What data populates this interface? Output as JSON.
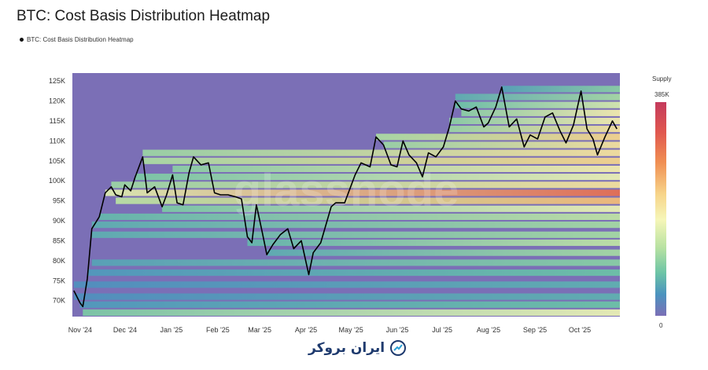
{
  "header": {
    "title": "BTC: Cost Basis Distribution Heatmap"
  },
  "legend": {
    "label": "BTC: Cost Basis Distribution Heatmap"
  },
  "colorbar": {
    "title": "Supply",
    "max_label": "385K",
    "min_label": "0"
  },
  "watermark": "glassnode",
  "brand": {
    "text": "ایران بروکر"
  },
  "colors": {
    "background": "#7b6fb6",
    "line": "#000000",
    "hot": "#c43a5c",
    "warm": "#f6f6b8",
    "cool": "#6cc4a6"
  },
  "chart_data": {
    "type": "heatmap",
    "title": "BTC: Cost Basis Distribution Heatmap",
    "x_labels": [
      "Nov '24",
      "Dec '24",
      "Jan '25",
      "Feb '25",
      "Mar '25",
      "Apr '25",
      "May '25",
      "Jun '25",
      "Jul '25",
      "Aug '25",
      "Sep '25",
      "Oct '25"
    ],
    "y_labels": [
      "70K",
      "75K",
      "80K",
      "85K",
      "90K",
      "95K",
      "100K",
      "105K",
      "110K",
      "115K",
      "120K",
      "125K"
    ],
    "ylim": [
      66000,
      127000
    ],
    "grid": false,
    "legend_position": "top-left",
    "series": [
      {
        "name": "BTC: Cost Basis Distribution Heatmap",
        "type": "line",
        "color": "#000000",
        "x": [
          "2024-11-01",
          "2024-11-05",
          "2024-11-07",
          "2024-11-10",
          "2024-11-13",
          "2024-11-18",
          "2024-11-22",
          "2024-11-26",
          "2024-11-29",
          "2024-12-03",
          "2024-12-05",
          "2024-12-09",
          "2024-12-12",
          "2024-12-17",
          "2024-12-20",
          "2024-12-25",
          "2024-12-30",
          "2025-01-02",
          "2025-01-06",
          "2025-01-09",
          "2025-01-13",
          "2025-01-17",
          "2025-01-20",
          "2025-01-25",
          "2025-01-30",
          "2025-02-03",
          "2025-02-07",
          "2025-02-12",
          "2025-02-17",
          "2025-02-21",
          "2025-02-25",
          "2025-02-28",
          "2025-03-03",
          "2025-03-07",
          "2025-03-10",
          "2025-03-14",
          "2025-03-19",
          "2025-03-24",
          "2025-03-28",
          "2025-04-02",
          "2025-04-07",
          "2025-04-10",
          "2025-04-15",
          "2025-04-22",
          "2025-04-25",
          "2025-05-01",
          "2025-05-08",
          "2025-05-12",
          "2025-05-18",
          "2025-05-22",
          "2025-05-27",
          "2025-06-01",
          "2025-06-05",
          "2025-06-09",
          "2025-06-13",
          "2025-06-18",
          "2025-06-22",
          "2025-06-26",
          "2025-07-01",
          "2025-07-06",
          "2025-07-10",
          "2025-07-14",
          "2025-07-18",
          "2025-07-23",
          "2025-07-28",
          "2025-08-02",
          "2025-08-05",
          "2025-08-10",
          "2025-08-14",
          "2025-08-19",
          "2025-08-24",
          "2025-08-29",
          "2025-09-02",
          "2025-09-07",
          "2025-09-12",
          "2025-09-17",
          "2025-09-22",
          "2025-09-26",
          "2025-10-01",
          "2025-10-06",
          "2025-10-10",
          "2025-10-14",
          "2025-10-17",
          "2025-10-22",
          "2025-10-27",
          "2025-10-30"
        ],
        "y": [
          72500,
          69500,
          68500,
          75500,
          88000,
          91000,
          97000,
          98500,
          96500,
          96000,
          99000,
          97500,
          101000,
          106000,
          97000,
          98500,
          93500,
          96500,
          101500,
          94500,
          94000,
          102000,
          106000,
          104000,
          104500,
          97000,
          96500,
          96500,
          96000,
          95500,
          86000,
          84500,
          94000,
          87000,
          81500,
          84000,
          86500,
          88000,
          83000,
          85000,
          76500,
          82000,
          84500,
          93500,
          94500,
          94500,
          101500,
          104500,
          103500,
          111000,
          109000,
          104000,
          103500,
          110000,
          106500,
          104500,
          101000,
          107000,
          106000,
          108500,
          113500,
          120000,
          118000,
          117500,
          118500,
          113500,
          114500,
          118500,
          123500,
          113500,
          115500,
          108500,
          111500,
          110500,
          116000,
          117000,
          112500,
          109500,
          114000,
          122500,
          113000,
          110500,
          106500,
          111000,
          115000,
          113000
        ]
      }
    ],
    "heat_bands": [
      {
        "y": 67000,
        "intensity": 0.5
      },
      {
        "y": 69000,
        "intensity": 0.25
      },
      {
        "y": 71000,
        "intensity": 0.2
      },
      {
        "y": 74000,
        "intensity": 0.2
      },
      {
        "y": 77000,
        "intensity": 0.25
      },
      {
        "y": 79500,
        "intensity": 0.3
      },
      {
        "y": 82000,
        "intensity": 0.35
      },
      {
        "y": 84500,
        "intensity": 0.4
      },
      {
        "y": 86500,
        "intensity": 0.35
      },
      {
        "y": 89000,
        "intensity": 0.35
      },
      {
        "y": 91000,
        "intensity": 0.4
      },
      {
        "y": 93000,
        "intensity": 0.5
      },
      {
        "y": 95000,
        "intensity": 0.7
      },
      {
        "y": 97000,
        "intensity": 0.85
      },
      {
        "y": 99000,
        "intensity": 0.6
      },
      {
        "y": 101000,
        "intensity": 0.5
      },
      {
        "y": 103000,
        "intensity": 0.55
      },
      {
        "y": 105000,
        "intensity": 0.65
      },
      {
        "y": 107000,
        "intensity": 0.6
      },
      {
        "y": 109000,
        "intensity": 0.6
      },
      {
        "y": 111000,
        "intensity": 0.65
      },
      {
        "y": 113000,
        "intensity": 0.6
      },
      {
        "y": 115000,
        "intensity": 0.55
      },
      {
        "y": 117000,
        "intensity": 0.55
      },
      {
        "y": 119000,
        "intensity": 0.45
      },
      {
        "y": 121000,
        "intensity": 0.35
      },
      {
        "y": 123000,
        "intensity": 0.3
      }
    ]
  }
}
